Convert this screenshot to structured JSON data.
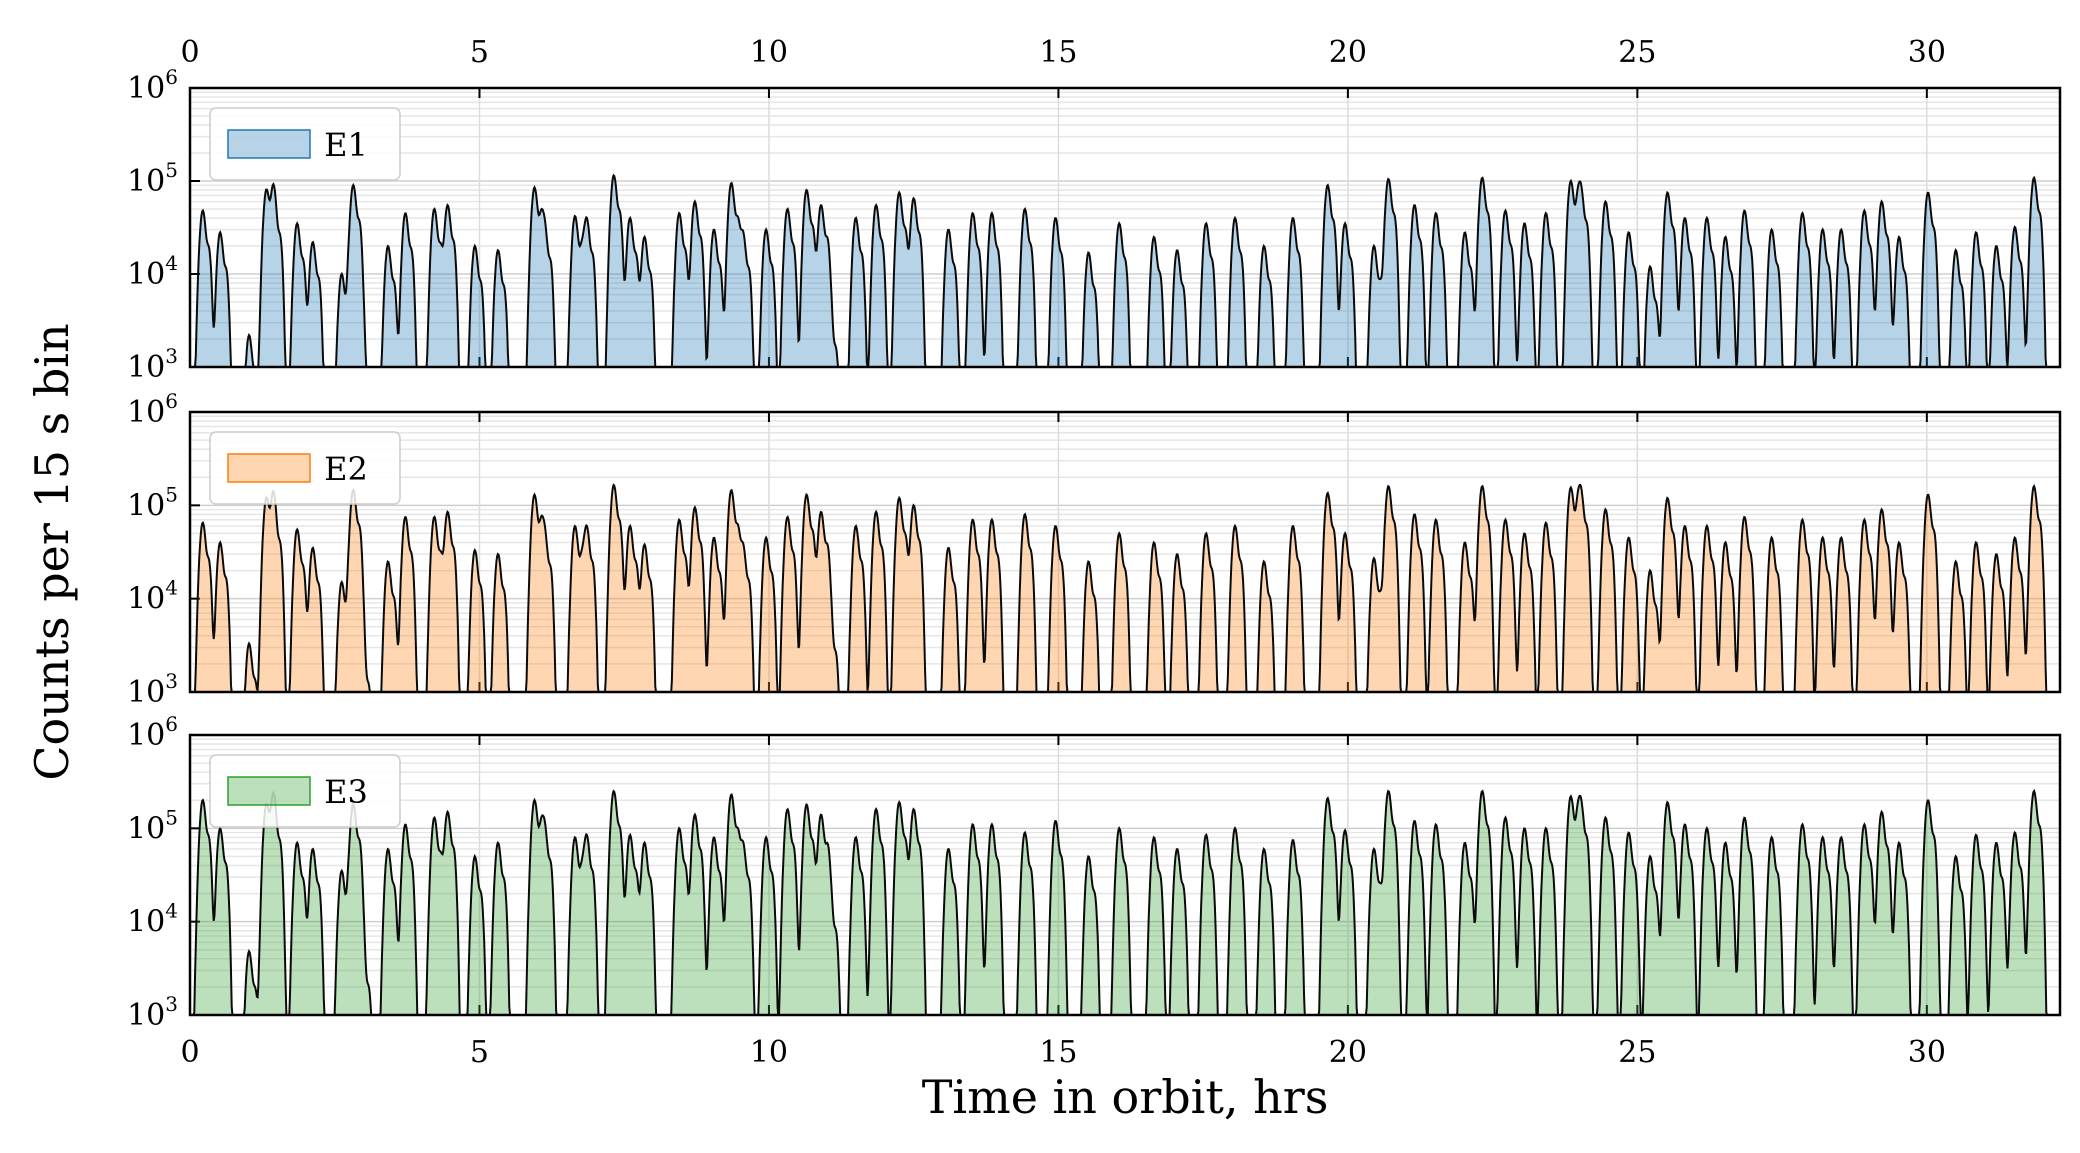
{
  "chart_data": {
    "type": "area",
    "xlabel": "Time in orbit, hrs",
    "ylabel": "Counts per 15 s bin",
    "xlim": [
      0,
      32.3
    ],
    "ylim": [
      1000,
      1000000
    ],
    "yscale": "log",
    "x_ticks": [
      0,
      5,
      10,
      15,
      20,
      25,
      30
    ],
    "x_tick_labels": [
      "0",
      "5",
      "10",
      "15",
      "20",
      "25",
      "30"
    ],
    "x_ticks_top": true,
    "y_ticks": [
      {
        "base": "10",
        "exp": "3"
      },
      {
        "base": "10",
        "exp": "4"
      },
      {
        "base": "10",
        "exp": "5"
      },
      {
        "base": "10",
        "exp": "6"
      }
    ],
    "grid": true,
    "legend_position": "upper-left",
    "peak_times": [
      0.22,
      0.52,
      1.02,
      1.32,
      1.45,
      1.85,
      2.12,
      2.62,
      2.82,
      2.98,
      3.42,
      3.72,
      4.22,
      4.45,
      4.92,
      5.32,
      5.95,
      6.12,
      6.65,
      6.85,
      7.32,
      7.6,
      7.85,
      8.45,
      8.72,
      9.05,
      9.35,
      9.55,
      9.95,
      10.32,
      10.65,
      10.9,
      11.05,
      11.5,
      11.85,
      12.25,
      12.5,
      13.1,
      13.52,
      13.85,
      14.42,
      14.95,
      15.52,
      16.05,
      16.65,
      17.05,
      17.55,
      18.05,
      18.55,
      19.05,
      19.65,
      19.95,
      20.45,
      20.7,
      21.15,
      21.52,
      22.02,
      22.32,
      22.72,
      23.05,
      23.42,
      23.85,
      24.02,
      24.45,
      24.85,
      25.22,
      25.52,
      25.82,
      26.2,
      26.52,
      26.85,
      27.32,
      27.85,
      28.2,
      28.52,
      28.92,
      29.22,
      29.52,
      30.02,
      30.5,
      30.85,
      31.2,
      31.52,
      31.85
    ],
    "series": [
      {
        "name": "E1",
        "color": "#1f77b4",
        "peaks": [
          48000,
          28000,
          2200,
          80000,
          65000,
          35000,
          22000,
          10000,
          90000,
          1700,
          20000,
          45000,
          50000,
          55000,
          20000,
          18000,
          85000,
          35000,
          42000,
          40000,
          115000,
          40000,
          25000,
          45000,
          60000,
          30000,
          95000,
          28000,
          30000,
          50000,
          80000,
          55000,
          4000,
          40000,
          55000,
          75000,
          65000,
          30000,
          45000,
          45000,
          50000,
          40000,
          17000,
          35000,
          25000,
          18000,
          35000,
          40000,
          20000,
          40000,
          90000,
          35000,
          20000,
          105000,
          55000,
          45000,
          28000,
          108000,
          48000,
          35000,
          45000,
          100000,
          88000,
          60000,
          28000,
          12000,
          75000,
          40000,
          40000,
          25000,
          48000,
          30000,
          45000,
          30000,
          30000,
          48000,
          60000,
          25000,
          75000,
          18000,
          28000,
          20000,
          32000,
          108000
        ]
      },
      {
        "name": "E2",
        "color": "#ff7f0e",
        "peaks": [
          65000,
          40000,
          3300,
          120000,
          100000,
          55000,
          35000,
          15000,
          145000,
          3000,
          25000,
          75000,
          75000,
          85000,
          33000,
          30000,
          130000,
          55000,
          60000,
          60000,
          165000,
          60000,
          38000,
          70000,
          95000,
          45000,
          145000,
          38000,
          45000,
          75000,
          130000,
          85000,
          6500,
          60000,
          85000,
          120000,
          100000,
          35000,
          70000,
          70000,
          80000,
          60000,
          25000,
          50000,
          40000,
          30000,
          50000,
          60000,
          25000,
          60000,
          135000,
          50000,
          27000,
          160000,
          80000,
          70000,
          40000,
          160000,
          70000,
          50000,
          65000,
          155000,
          150000,
          90000,
          45000,
          20000,
          120000,
          60000,
          60000,
          40000,
          75000,
          45000,
          70000,
          45000,
          45000,
          70000,
          90000,
          40000,
          130000,
          25000,
          40000,
          30000,
          45000,
          160000
        ]
      },
      {
        "name": "E3",
        "color": "#2ca02c",
        "peaks": [
          200000,
          100000,
          4800,
          180000,
          180000,
          70000,
          60000,
          35000,
          180000,
          5000,
          60000,
          110000,
          130000,
          150000,
          50000,
          70000,
          200000,
          110000,
          80000,
          85000,
          250000,
          85000,
          70000,
          100000,
          140000,
          80000,
          230000,
          70000,
          80000,
          160000,
          180000,
          140000,
          20000,
          80000,
          160000,
          190000,
          160000,
          60000,
          110000,
          110000,
          90000,
          120000,
          50000,
          100000,
          80000,
          60000,
          85000,
          100000,
          60000,
          75000,
          210000,
          95000,
          60000,
          250000,
          120000,
          110000,
          70000,
          250000,
          130000,
          100000,
          100000,
          220000,
          200000,
          130000,
          90000,
          50000,
          190000,
          110000,
          100000,
          70000,
          130000,
          80000,
          110000,
          80000,
          80000,
          110000,
          150000,
          70000,
          200000,
          50000,
          85000,
          70000,
          90000,
          250000
        ]
      }
    ]
  }
}
